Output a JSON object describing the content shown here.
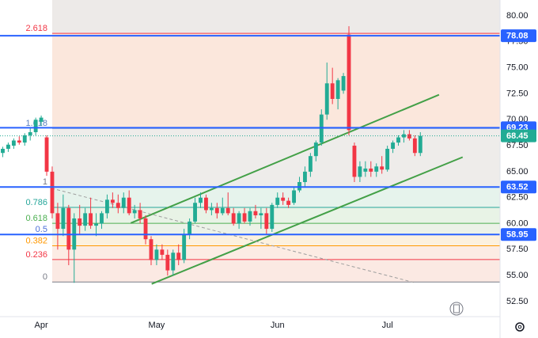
{
  "chart_data": {
    "type": "candlestick",
    "x": [
      0,
      1,
      2,
      3,
      4,
      5,
      6,
      7,
      8,
      9,
      10,
      11,
      12,
      13,
      14,
      15,
      16,
      17,
      18,
      19,
      20,
      21,
      22,
      23,
      24,
      25,
      26,
      27,
      28,
      29,
      30,
      31,
      32,
      33,
      34,
      35,
      36,
      37,
      38,
      39,
      40,
      41,
      42,
      43,
      44,
      45,
      46,
      47,
      48,
      49,
      50,
      51,
      52,
      53,
      54,
      55,
      56,
      57,
      58,
      59,
      60,
      61,
      62,
      63,
      64,
      65,
      66,
      67,
      68,
      69,
      70,
      71,
      72,
      73,
      74,
      75,
      76
    ],
    "open": [
      66.8,
      67.2,
      67.5,
      68.0,
      67.8,
      68.5,
      68.8,
      69.8,
      68.3,
      65.0,
      61.0,
      59.5,
      61.5,
      57.5,
      60.5,
      59.8,
      61.0,
      59.8,
      60.0,
      61.0,
      62.3,
      62.0,
      61.5,
      62.5,
      61.0,
      61.3,
      60.5,
      58.5,
      56.5,
      57.5,
      57.0,
      55.5,
      57.2,
      56.5,
      59.0,
      60.2,
      62.0,
      62.5,
      61.3,
      61.5,
      61.0,
      61.5,
      61.0,
      60.0,
      61.0,
      60.2,
      61.2,
      60.8,
      61.0,
      59.5,
      61.8,
      62.5,
      62.2,
      62.0,
      63.2,
      64.0,
      65.0,
      66.5,
      67.8,
      70.5,
      73.5,
      72.0,
      72.8,
      78.2,
      67.5,
      64.5,
      65.0,
      65.3,
      65.0,
      65.5,
      65.2,
      67.2,
      67.8,
      68.3,
      68.6,
      68.2,
      66.8
    ],
    "high": [
      67.4,
      67.8,
      68.2,
      68.4,
      68.7,
      69.2,
      70.2,
      70.4,
      68.5,
      65.5,
      62.0,
      62.8,
      61.8,
      61.0,
      61.8,
      61.5,
      62.5,
      61.0,
      61.2,
      62.8,
      63.0,
      62.8,
      63.0,
      63.2,
      61.8,
      62.0,
      60.8,
      58.8,
      58.0,
      58.0,
      57.5,
      57.5,
      58.0,
      59.5,
      60.5,
      62.5,
      63.0,
      62.8,
      62.0,
      62.0,
      62.5,
      63.0,
      61.5,
      61.2,
      61.5,
      61.5,
      61.8,
      61.5,
      61.5,
      62.0,
      63.0,
      63.0,
      62.5,
      63.5,
      64.5,
      65.5,
      66.8,
      68.0,
      71.0,
      75.5,
      75.0,
      74.0,
      74.5,
      79.0,
      67.8,
      66.0,
      66.0,
      66.0,
      65.8,
      66.5,
      67.5,
      68.0,
      68.5,
      69.0,
      69.0,
      68.5,
      68.8
    ],
    "low": [
      66.4,
      66.9,
      67.2,
      67.6,
      67.5,
      68.0,
      68.5,
      69.4,
      64.6,
      60.5,
      57.5,
      58.8,
      56.0,
      54.3,
      59.0,
      59.3,
      59.5,
      58.8,
      59.5,
      60.5,
      61.5,
      61.0,
      61.0,
      60.8,
      60.5,
      60.0,
      58.0,
      56.0,
      56.0,
      56.5,
      55.0,
      55.0,
      56.0,
      56.2,
      58.5,
      60.0,
      61.5,
      61.0,
      60.8,
      60.5,
      60.8,
      60.8,
      59.8,
      59.5,
      60.0,
      59.8,
      60.5,
      59.5,
      59.0,
      59.2,
      61.5,
      61.8,
      61.5,
      61.8,
      63.0,
      63.5,
      64.5,
      66.0,
      67.5,
      70.0,
      71.5,
      71.0,
      72.5,
      68.5,
      64.0,
      64.0,
      64.5,
      64.5,
      64.5,
      64.8,
      65.0,
      66.8,
      67.5,
      67.8,
      68.0,
      66.5,
      66.5
    ],
    "close": [
      67.2,
      67.6,
      68.0,
      67.8,
      68.5,
      68.8,
      70.0,
      70.2,
      65.0,
      61.0,
      59.5,
      61.5,
      57.5,
      60.5,
      59.8,
      61.0,
      59.8,
      60.0,
      61.0,
      62.3,
      62.0,
      61.5,
      62.5,
      61.0,
      61.3,
      60.5,
      58.5,
      56.5,
      57.5,
      57.0,
      55.5,
      57.2,
      56.5,
      59.0,
      60.2,
      62.0,
      62.5,
      61.3,
      61.5,
      61.0,
      61.5,
      61.0,
      60.0,
      61.0,
      60.2,
      61.2,
      60.8,
      61.0,
      59.5,
      61.8,
      62.5,
      62.2,
      61.8,
      63.2,
      64.0,
      65.0,
      66.5,
      67.8,
      70.5,
      73.5,
      72.0,
      73.8,
      74.2,
      69.0,
      64.5,
      65.5,
      65.3,
      65.0,
      65.5,
      65.2,
      67.2,
      67.8,
      68.3,
      68.6,
      68.2,
      66.8,
      68.45
    ],
    "up_color": "#22ab94",
    "down_color": "#f23645",
    "xlim": [
      -0.5,
      90.5
    ],
    "ylim": [
      51.05,
      81.52
    ],
    "xticks": [
      {
        "value": 7,
        "label": "Apr"
      },
      {
        "value": 28,
        "label": "May"
      },
      {
        "value": 50,
        "label": "Jun"
      },
      {
        "value": 70,
        "label": "Jul"
      }
    ],
    "yticks": [
      {
        "value": 80,
        "label": "80.00"
      },
      {
        "value": 77.5,
        "label": "77.50"
      },
      {
        "value": 75,
        "label": "75.00"
      },
      {
        "value": 72.5,
        "label": "72.50"
      },
      {
        "value": 70,
        "label": "70.00"
      },
      {
        "value": 67.5,
        "label": "67.50"
      },
      {
        "value": 65,
        "label": "65.00"
      },
      {
        "value": 62.5,
        "label": "62.50"
      },
      {
        "value": 60,
        "label": "60.00"
      },
      {
        "value": 57.5,
        "label": "57.50"
      },
      {
        "value": 55,
        "label": "55.00"
      },
      {
        "value": 52.5,
        "label": "52.50"
      }
    ],
    "fib_start": 9,
    "fib_levels": [
      {
        "label": "2.618",
        "value": 78.31,
        "color": "#f23645",
        "fill": "#fbe7dc"
      },
      {
        "label": "1.618",
        "value": 69.17,
        "color": "#5b7fbf",
        "fill": "#eeecea"
      },
      {
        "label": "1",
        "value": 63.52,
        "color": "#787b86",
        "fill": "#e6f3ec"
      },
      {
        "label": "0.786",
        "value": 61.56,
        "color": "#26a69a",
        "fill": "#e8f3e6"
      },
      {
        "label": "0.618",
        "value": 60.03,
        "color": "#4caf50",
        "fill": "#ecf2e8"
      },
      {
        "label": "0.5",
        "value": 58.95,
        "color": "#4c6fd8",
        "fill": "#fcf1df"
      },
      {
        "label": "0.382",
        "value": 57.87,
        "color": "#ff9800",
        "fill": "#fcece4"
      },
      {
        "label": "0.236",
        "value": 56.54,
        "color": "#f23645",
        "fill": "#fbe9e3"
      },
      {
        "label": "0",
        "value": 54.38,
        "color": "#787b86",
        "fill": null
      }
    ],
    "price_lines": [
      78.08,
      69.23,
      63.52,
      58.95
    ],
    "price_line_color": "#2962ff",
    "last_price": 68.45,
    "trend_lines": [
      {
        "x": [
          23.3,
          79.4
        ],
        "y": [
          60.05,
          72.4
        ],
        "color": "#43a047",
        "dashed": false
      },
      {
        "x": [
          27.1,
          83.7
        ],
        "y": [
          54.2,
          66.4
        ],
        "color": "#43a047",
        "dashed": false
      },
      {
        "x": [
          8.9,
          75.1
        ],
        "y": [
          63.4,
          54.3
        ],
        "color": "#9e9e9e",
        "dashed": true
      }
    ]
  }
}
